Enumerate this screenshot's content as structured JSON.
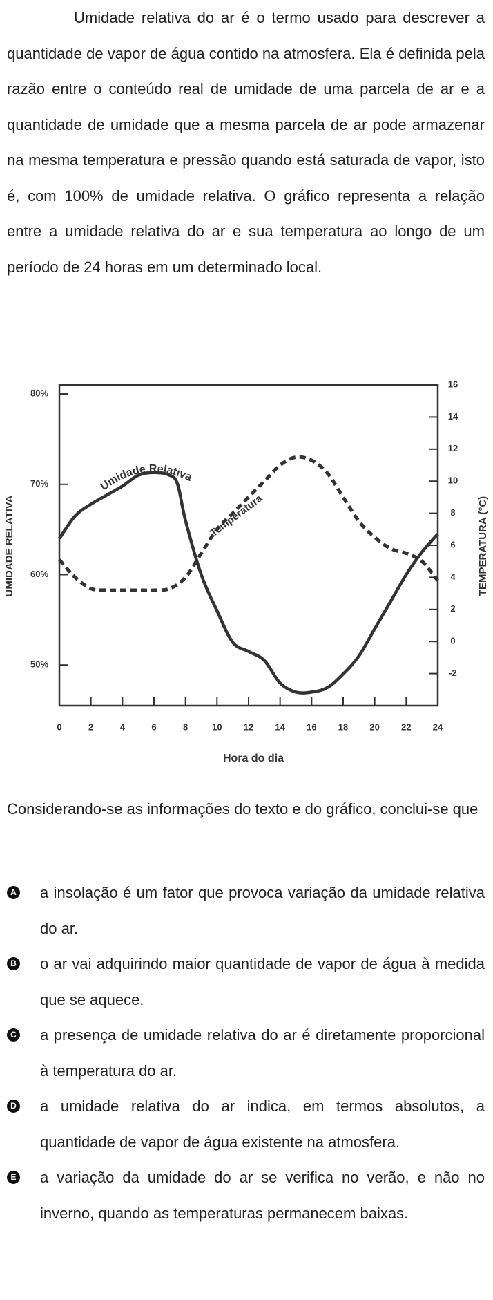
{
  "intro": "Umidade relativa do ar é o termo usado para descrever a quantidade de vapor de água contido na atmosfera. Ela é definida pela razão entre o conteúdo real de umidade de uma parcela de ar e a quantidade de umidade que a mesma parcela de ar pode armazenar na mesma temperatura e pressão quando está saturada de vapor, isto é, com 100% de umidade relativa. O gráfico representa a relação entre a umidade relativa do ar e sua temperatura ao longo de um período de 24 horas em um determinado local.",
  "chart_data": {
    "type": "line",
    "xlabel": "Hora do dia",
    "ylabel": "UMIDADE RELATIVA",
    "y2label": "TEMPERATURA (°C)",
    "xlim": [
      0,
      24
    ],
    "xticks": [
      0,
      2,
      4,
      6,
      8,
      10,
      12,
      14,
      16,
      18,
      20,
      22,
      24
    ],
    "ylim": [
      45.5,
      81
    ],
    "yticks": [
      {
        "value": 50,
        "label": "50%"
      },
      {
        "value": 60,
        "label": "60%"
      },
      {
        "value": 70,
        "label": "70%"
      },
      {
        "value": 80,
        "label": "80%"
      }
    ],
    "y2lim": [
      -4,
      16
    ],
    "y2ticks": [
      -2,
      0,
      2,
      4,
      6,
      8,
      10,
      12,
      14,
      16
    ],
    "series": [
      {
        "name": "Umidade Relativa",
        "color": "#333333",
        "linestyle": "solid",
        "x": [
          0,
          1,
          2,
          3,
          4,
          5,
          6,
          7,
          7.5,
          8,
          9,
          10,
          11,
          12,
          13,
          14,
          15,
          16,
          17,
          18,
          19,
          20,
          21,
          22,
          23,
          24
        ],
        "values": [
          64,
          66.5,
          67.8,
          68.8,
          69.8,
          71,
          71.3,
          71,
          70,
          66,
          60,
          56,
          52.5,
          51.5,
          50.5,
          48,
          47,
          47,
          47.5,
          49,
          51,
          54,
          57,
          60,
          62.5,
          64.5
        ]
      },
      {
        "name": "Temperatura",
        "color": "#333333",
        "linestyle": "dashed",
        "axis": "y2",
        "x": [
          0,
          1,
          2,
          3,
          4,
          5,
          6,
          7,
          8,
          9,
          10,
          11,
          12,
          13,
          14,
          15,
          16,
          17,
          18,
          19,
          20,
          21,
          22,
          23,
          24
        ],
        "values": [
          5.1,
          4,
          3.3,
          3.2,
          3.2,
          3.2,
          3.2,
          3.3,
          4,
          5.5,
          7,
          8,
          9,
          10,
          11,
          11.5,
          11.3,
          10.5,
          9,
          7.5,
          6.5,
          5.8,
          5.5,
          5,
          3.8
        ]
      }
    ]
  },
  "question": "Considerando-se as informações do texto e do gráfico, conclui-se que",
  "options": [
    {
      "letter": "A",
      "text": "a insolação é um fator que provoca variação da umidade relativa do ar."
    },
    {
      "letter": "B",
      "text": "o ar vai adquirindo maior quantidade de vapor de água à medida que se aquece."
    },
    {
      "letter": "C",
      "text": "a presença de umidade relativa do ar é diretamente proporcional à temperatura do ar."
    },
    {
      "letter": "D",
      "text": "a umidade relativa do ar indica, em termos absolutos, a quantidade de vapor de água existente na atmosfera."
    },
    {
      "letter": "E",
      "text": "a variação da umidade do ar se verifica no verão, e não no inverno, quando as temperaturas permanecem baixas."
    }
  ]
}
